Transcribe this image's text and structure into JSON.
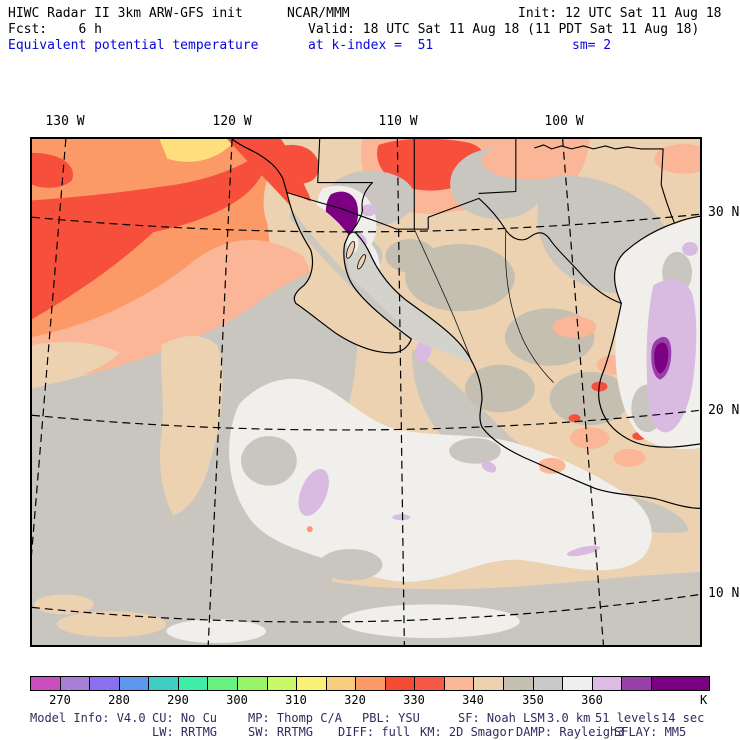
{
  "header": {
    "title": "HIWC Radar II 3km ARW-GFS init",
    "org": "NCAR/MMM",
    "init": "Init: 12 UTC Sat 11 Aug 18",
    "fcst": "Fcst:    6 h",
    "valid": "Valid: 18 UTC Sat 11 Aug 18 (11 PDT Sat 11 Aug 18)",
    "field": "Equivalent potential temperature",
    "level": "at k-index =  51",
    "smooth": "sm= 2"
  },
  "map": {
    "lon_labels": [
      "130 W",
      "120 W",
      "110 W",
      "100 W"
    ],
    "lat_labels": [
      "30 N",
      "20 N",
      "10 N"
    ]
  },
  "colorbar": {
    "unit": "K",
    "ticks": [
      "270",
      "280",
      "290",
      "300",
      "310",
      "320",
      "330",
      "340",
      "350",
      "360"
    ],
    "colors": [
      "#C94FC0",
      "#A77FD8",
      "#8A70EC",
      "#5C99EC",
      "#40CEC4",
      "#40EDA6",
      "#69F27F",
      "#98F569",
      "#C9F868",
      "#FAEF77",
      "#FACD7E",
      "#FB9A66",
      "#F64B33",
      "#F65848",
      "#FBB597",
      "#EDD2B2",
      "#C5BFB1",
      "#C9C9C9",
      "#EFEFEF",
      "#DCBCE4",
      "#9A3FAA",
      "#7B0082"
    ]
  },
  "footer": {
    "line1": [
      "Model Info: V4.0",
      "CU: No Cu",
      "MP: Thomp C/A",
      "PBL: YSU",
      "SF: Noah LSM",
      "3.0 km",
      "51 levels",
      "14 sec"
    ],
    "line2": [
      "LW: RRTMG",
      "SW: RRTMG",
      "DIFF: full",
      "KM: 2D Smagor",
      "DAMP: Rayleigh3",
      "SFLAY: MM5"
    ]
  },
  "chart_data": {
    "type": "heatmap",
    "title": "Equivalent potential temperature at k-index = 51",
    "units": "K",
    "region": "Eastern Pacific, Mexico, Baja California, SW United States, Gulf of Mexico",
    "graticule": {
      "longitudes_w": [
        130,
        120,
        110,
        100
      ],
      "latitudes_n": [
        30,
        20,
        10
      ]
    },
    "colorbar_bins": [
      {
        "from": 265,
        "to": 270,
        "color": "#C94FC0"
      },
      {
        "from": 270,
        "to": 275,
        "color": "#A77FD8"
      },
      {
        "from": 275,
        "to": 280,
        "color": "#8A70EC"
      },
      {
        "from": 280,
        "to": 285,
        "color": "#5C99EC"
      },
      {
        "from": 285,
        "to": 290,
        "color": "#40CEC4"
      },
      {
        "from": 290,
        "to": 295,
        "color": "#40EDA6"
      },
      {
        "from": 295,
        "to": 300,
        "color": "#69F27F"
      },
      {
        "from": 300,
        "to": 305,
        "color": "#98F569"
      },
      {
        "from": 305,
        "to": 310,
        "color": "#C9F868"
      },
      {
        "from": 310,
        "to": 315,
        "color": "#FAEF77"
      },
      {
        "from": 315,
        "to": 320,
        "color": "#FACD7E"
      },
      {
        "from": 320,
        "to": 325,
        "color": "#FB9A66"
      },
      {
        "from": 325,
        "to": 330,
        "color": "#F64B33"
      },
      {
        "from": 330,
        "to": 335,
        "color": "#F65848"
      },
      {
        "from": 335,
        "to": 340,
        "color": "#FBB597"
      },
      {
        "from": 340,
        "to": 345,
        "color": "#EDD2B2"
      },
      {
        "from": 345,
        "to": 350,
        "color": "#C5BFB1"
      },
      {
        "from": 350,
        "to": 355,
        "color": "#C9C9C9"
      },
      {
        "from": 355,
        "to": 360,
        "color": "#EFEFEF"
      },
      {
        "from": 360,
        "to": 365,
        "color": "#DCBCE4"
      },
      {
        "from": 365,
        "to": 370,
        "color": "#9A3FAA"
      },
      {
        "from": 370,
        "to": 380,
        "color": "#7B0082"
      }
    ],
    "notable_features": [
      "Theta-e maximum >370 K (dark purple) over Mexicali / Colorado River delta near head of Gulf of California",
      "Theta-e maximum 360-375 K (lavender with purple core) over western Gulf of Mexico",
      "High theta-e 320-335 K (orange/red) plume over NE Pacific off California in NW corner",
      "Broad 350-360 K (gray/white) over tropical East Pacific and Gulf of Mexico",
      "340-350 K (tan/gray-tan) over interior Mexico and SW US with 335-340 K (salmon) patches over Arizona and Texas"
    ]
  }
}
